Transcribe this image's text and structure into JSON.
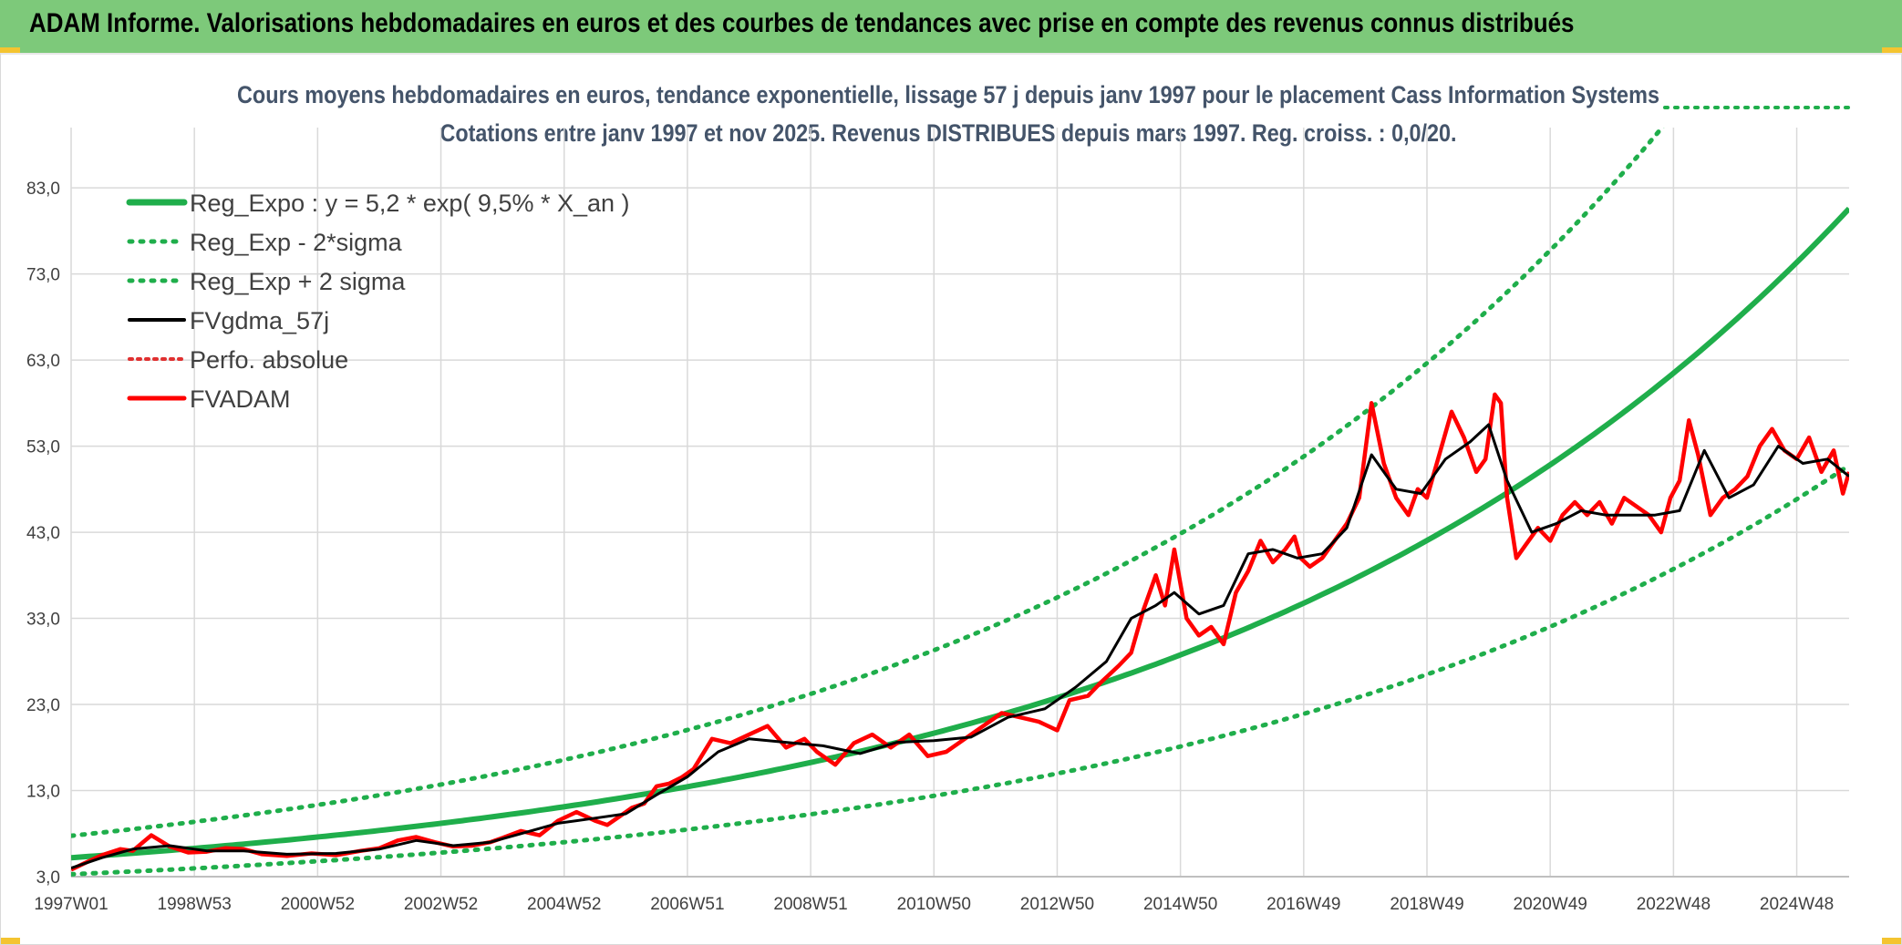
{
  "header": {
    "title": "ADAM Informe. Valorisations hebdomadaires en euros et des courbes de tendances avec prise en compte des revenus connus distribués"
  },
  "colors": {
    "header_bg": "#7dc97a",
    "trend": "#1fae4b",
    "band": "#1fae4b",
    "smoothed": "#000000",
    "price": "#ff0000",
    "perf": "#e03030",
    "grid": "#d9d9d9"
  },
  "chart_data": {
    "type": "line",
    "title": "Cours moyens hebdomadaires en euros, tendance exponentielle, lissage 57 j depuis janv 1997 pour le placement Cass Information Systems",
    "subtitle": "Cotations entre janv 1997 et nov 2025. Revenus DISTRIBUES depuis mars 1997. Reg. croiss. : 0,0/20.",
    "x_range": [
      1997.0,
      2025.85
    ],
    "ylim": [
      3.0,
      90.0
    ],
    "y_ticks": [
      "3,0",
      "13,0",
      "23,0",
      "33,0",
      "43,0",
      "53,0",
      "63,0",
      "73,0",
      "83,0"
    ],
    "y_tick_values": [
      3,
      13,
      23,
      33,
      43,
      53,
      63,
      73,
      83
    ],
    "x_ticks": [
      "1997W01",
      "1998W53",
      "2000W52",
      "2002W52",
      "2004W52",
      "2006W51",
      "2008W51",
      "2010W50",
      "2012W50",
      "2014W50",
      "2016W49",
      "2018W49",
      "2020W49",
      "2022W48",
      "2024W48"
    ],
    "x_tick_values": [
      1997.0,
      1999.0,
      2001.0,
      2003.0,
      2005.0,
      2007.0,
      2009.0,
      2011.0,
      2013.0,
      2015.0,
      2017.0,
      2019.0,
      2021.0,
      2023.0,
      2025.0
    ],
    "legend": [
      {
        "label": "Reg_Expo : y = 5,2 * exp( 9,5% *  X_an )",
        "style": "trend"
      },
      {
        "label": "Reg_Exp - 2*sigma",
        "style": "band"
      },
      {
        "label": "Reg_Exp + 2 sigma",
        "style": "band"
      },
      {
        "label": "FVgdma_57j",
        "style": "smoothed"
      },
      {
        "label": "Perfo. absolue",
        "style": "perf"
      },
      {
        "label": "FVADAM",
        "style": "price"
      }
    ],
    "trend": {
      "a": 5.2,
      "rate": 0.095,
      "start_year": 1997.0
    },
    "band_factors": {
      "lower": 0.63,
      "upper": 1.49
    },
    "series": [
      {
        "name": "FVADAM",
        "x": [
          1997.0,
          1997.2,
          1997.5,
          1997.8,
          1998.0,
          1998.3,
          1998.6,
          1998.9,
          1999.2,
          1999.5,
          1999.8,
          2000.1,
          2000.5,
          2000.9,
          2001.3,
          2001.7,
          2002.0,
          2002.3,
          2002.6,
          2002.9,
          2003.2,
          2003.5,
          2003.8,
          2004.0,
          2004.3,
          2004.6,
          2004.9,
          2005.2,
          2005.5,
          2005.7,
          2005.9,
          2006.1,
          2006.3,
          2006.5,
          2006.7,
          2006.9,
          2007.1,
          2007.4,
          2007.7,
          2008.0,
          2008.3,
          2008.6,
          2008.9,
          2009.1,
          2009.4,
          2009.7,
          2010.0,
          2010.3,
          2010.6,
          2010.9,
          2011.2,
          2011.5,
          2011.8,
          2012.1,
          2012.4,
          2012.7,
          2013.0,
          2013.2,
          2013.5,
          2013.7,
          2013.85,
          2014.0,
          2014.2,
          2014.4,
          2014.6,
          2014.75,
          2014.9,
          2015.1,
          2015.3,
          2015.5,
          2015.7,
          2015.9,
          2016.1,
          2016.3,
          2016.5,
          2016.7,
          2016.85,
          2016.95,
          2017.1,
          2017.3,
          2017.5,
          2017.7,
          2017.9,
          2018.1,
          2018.3,
          2018.5,
          2018.7,
          2018.85,
          2019.0,
          2019.2,
          2019.4,
          2019.6,
          2019.8,
          2019.95,
          2020.1,
          2020.2,
          2020.3,
          2020.45,
          2020.6,
          2020.8,
          2021.0,
          2021.2,
          2021.4,
          2021.6,
          2021.8,
          2022.0,
          2022.2,
          2022.4,
          2022.6,
          2022.8,
          2022.95,
          2023.1,
          2023.25,
          2023.4,
          2023.6,
          2023.8,
          2024.0,
          2024.2,
          2024.4,
          2024.6,
          2024.8,
          2025.0,
          2025.2,
          2025.4,
          2025.6,
          2025.75,
          2025.85
        ],
        "y": [
          3.8,
          4.5,
          5.5,
          6.2,
          6.0,
          7.8,
          6.5,
          5.8,
          5.9,
          6.3,
          6.2,
          5.6,
          5.4,
          5.7,
          5.5,
          6.0,
          6.3,
          7.2,
          7.6,
          7.0,
          6.5,
          6.6,
          7.0,
          7.5,
          8.3,
          7.8,
          9.5,
          10.5,
          9.5,
          9.0,
          10.0,
          11.0,
          11.5,
          13.5,
          13.8,
          14.5,
          15.5,
          19.0,
          18.5,
          19.5,
          20.5,
          18.0,
          19.0,
          17.5,
          16.0,
          18.5,
          19.5,
          18.0,
          19.5,
          17.0,
          17.5,
          19.0,
          20.5,
          22.0,
          21.5,
          21.0,
          20.0,
          23.5,
          24.0,
          25.5,
          26.5,
          27.5,
          29.0,
          34.0,
          38.0,
          34.5,
          41.0,
          33.0,
          31.0,
          32.0,
          30.0,
          36.0,
          38.5,
          42.0,
          39.5,
          41.0,
          42.5,
          40.0,
          39.0,
          40.0,
          42.0,
          44.0,
          47.0,
          58.0,
          51.0,
          47.0,
          45.0,
          48.0,
          47.0,
          52.0,
          57.0,
          54.0,
          50.0,
          51.5,
          59.0,
          58.0,
          47.0,
          40.0,
          41.5,
          43.5,
          42.0,
          45.0,
          46.5,
          45.0,
          46.5,
          44.0,
          47.0,
          46.0,
          45.0,
          43.0,
          47.0,
          49.0,
          56.0,
          52.0,
          45.0,
          47.0,
          48.0,
          49.5,
          53.0,
          55.0,
          52.5,
          51.5,
          54.0,
          50.0,
          52.5,
          47.5,
          50.0
        ]
      },
      {
        "name": "FVgdma_57j",
        "x": [
          1997.0,
          1997.5,
          1998.0,
          1998.6,
          1999.2,
          1999.8,
          2000.5,
          2001.3,
          2002.0,
          2002.6,
          2003.2,
          2003.8,
          2004.3,
          2004.9,
          2005.5,
          2006.0,
          2006.5,
          2007.0,
          2007.5,
          2008.0,
          2008.6,
          2009.2,
          2009.8,
          2010.4,
          2011.0,
          2011.6,
          2012.2,
          2012.8,
          2013.3,
          2013.8,
          2014.2,
          2014.6,
          2014.9,
          2015.3,
          2015.7,
          2016.1,
          2016.5,
          2016.9,
          2017.3,
          2017.7,
          2018.1,
          2018.5,
          2018.9,
          2019.3,
          2019.7,
          2020.0,
          2020.3,
          2020.7,
          2021.1,
          2021.5,
          2021.9,
          2022.3,
          2022.7,
          2023.1,
          2023.5,
          2023.9,
          2024.3,
          2024.7,
          2025.1,
          2025.5,
          2025.85
        ],
        "y": [
          4.0,
          5.2,
          6.2,
          6.6,
          6.0,
          6.0,
          5.6,
          5.7,
          6.2,
          7.2,
          6.6,
          7.0,
          8.0,
          9.2,
          9.8,
          10.3,
          12.5,
          14.6,
          17.5,
          19.0,
          18.6,
          18.2,
          17.3,
          18.6,
          18.8,
          19.2,
          21.5,
          22.5,
          25.0,
          28.0,
          33.0,
          34.5,
          36.0,
          33.5,
          34.5,
          40.5,
          41.0,
          40.0,
          40.5,
          43.5,
          52.0,
          48.0,
          47.5,
          51.5,
          53.5,
          55.5,
          49.0,
          43.0,
          44.0,
          45.5,
          45.0,
          45.0,
          45.0,
          45.5,
          52.5,
          47.0,
          48.5,
          53.0,
          51.0,
          51.5,
          49.5
        ]
      }
    ]
  }
}
